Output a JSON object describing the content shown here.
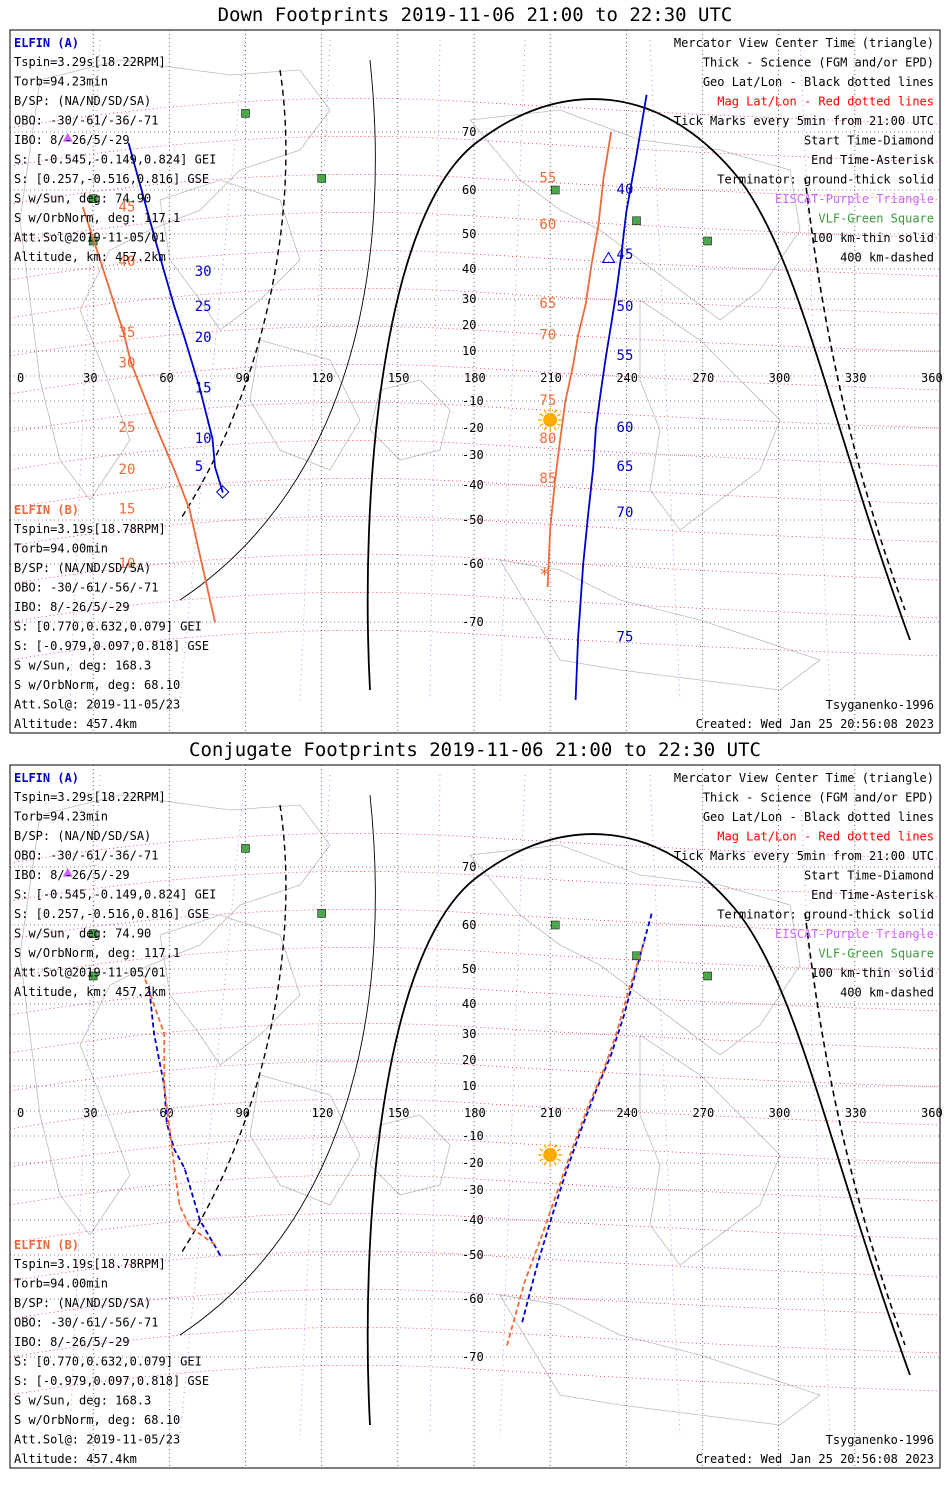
{
  "panels": [
    {
      "id": "down",
      "title": "Down Footprints 2019-11-06 21:00 to 22:30 UTC",
      "left_info": {
        "a_label": "ELFIN (A)",
        "a_lines": [
          "Tspin=3.29s[18.22RPM]",
          "Torb=94.23min",
          "B/SP: (NA/ND/SD/SA)",
          "OBO: -30/-61/-36/-71",
          "IBO: 8/-26/5/-29",
          "S: [-0.545,-0.149,0.824] GEI",
          "S: [0.257,-0.516,0.816] GSE",
          "S w/Sun, deg: 74.90",
          "S w/OrbNorm, deg: 117.1",
          "Att.Sol@2019-11-05/01",
          "Altitude, km: 457.2km"
        ],
        "b_label": "ELFIN (B)",
        "b_lines": [
          "Tspin=3.19s[18.78RPM]",
          "Torb=94.00min",
          "B/SP: (NA/ND/SD/SA)",
          "OBO: -30/-61/-56/-71",
          "IBO: 8/-26/5/-29",
          "S: [0.770,0.632,0.079] GEI",
          "S: [-0.979,0.097,0.818] GSE",
          "S w/Sun, deg: 168.3",
          "S w/OrbNorm, deg: 68.10",
          "Att.Sol@: 2019-11-05/23",
          "Altitude: 457.4km"
        ]
      },
      "a_track": [
        [
          81,
          -42
        ],
        [
          78,
          -34
        ],
        [
          77,
          -24
        ],
        [
          76,
          -14
        ],
        [
          72,
          -5
        ],
        [
          67,
          5
        ],
        [
          66,
          15
        ],
        [
          62,
          27
        ],
        [
          58,
          39
        ],
        [
          55,
          47
        ],
        [
          52,
          56
        ],
        [
          48,
          62
        ],
        [
          44,
          68
        ]
      ],
      "a_ticks": [
        [
          "5",
          -34
        ],
        [
          "10",
          -24
        ],
        [
          "15",
          -5
        ],
        [
          "20",
          15
        ],
        [
          "25",
          27
        ],
        [
          "30",
          39
        ]
      ],
      "b_track": [
        [
          80,
          -80
        ],
        [
          78,
          -70
        ],
        [
          73,
          -60
        ],
        [
          68,
          -47
        ],
        [
          62,
          -35
        ],
        [
          55,
          -20
        ],
        [
          49,
          -8
        ],
        [
          45,
          5
        ],
        [
          42,
          17
        ],
        [
          38,
          30
        ],
        [
          33,
          42
        ],
        [
          26,
          56
        ],
        [
          20,
          67
        ]
      ],
      "b_ticks": [
        [
          "10",
          -60
        ],
        [
          "15",
          -47
        ],
        [
          "20",
          -35
        ],
        [
          "25",
          -20
        ],
        [
          "30",
          5
        ],
        [
          "35",
          17
        ],
        [
          "40",
          42
        ],
        [
          "45",
          56
        ]
      ],
      "a2_track": [
        [
          220,
          -80
        ],
        [
          221,
          -72
        ],
        [
          223,
          -60
        ],
        [
          225,
          -48
        ],
        [
          227,
          -34
        ],
        [
          228,
          -20
        ],
        [
          230,
          -6
        ],
        [
          232,
          8
        ],
        [
          234,
          20
        ],
        [
          236,
          32
        ],
        [
          238,
          44
        ],
        [
          240,
          55
        ],
        [
          244,
          66
        ],
        [
          248,
          76
        ]
      ],
      "a2_ticks": [
        [
          "50",
          27
        ],
        [
          "55",
          8
        ],
        [
          "60",
          -20
        ],
        [
          "65",
          -34
        ],
        [
          "70",
          -48
        ],
        [
          "75",
          -72
        ],
        [
          "45",
          44
        ],
        [
          "40",
          60
        ]
      ],
      "b2_track": [
        [
          209,
          -64
        ],
        [
          210,
          -52
        ],
        [
          212,
          -38
        ],
        [
          214,
          -24
        ],
        [
          216,
          -10
        ],
        [
          219,
          4
        ],
        [
          221,
          16
        ],
        [
          224,
          28
        ],
        [
          226,
          40
        ],
        [
          229,
          52
        ],
        [
          231,
          62
        ],
        [
          234,
          70
        ]
      ],
      "b2_ticks": [
        [
          "85",
          -38
        ],
        [
          "80",
          -24
        ],
        [
          "75",
          -10
        ],
        [
          "70",
          16
        ],
        [
          "65",
          28
        ],
        [
          "60",
          52
        ],
        [
          "55",
          62
        ]
      ],
      "terminator_solid": "down",
      "footer_left": "",
      "footer_right": "Tsyganenko-1996",
      "created": "Created: Wed Jan 25 20:56:08 2023"
    },
    {
      "id": "conj",
      "title": "Conjugate Footprints 2019-11-06 21:00 to 22:30 UTC",
      "left_info": {
        "a_label": "ELFIN (A)",
        "a_lines": [
          "Tspin=3.29s[18.22RPM]",
          "Torb=94.23min",
          "B/SP: (NA/ND/SD/SA)",
          "OBO: -30/-61/-36/-71",
          "IBO: 8/-26/5/-29",
          "S: [-0.545,-0.149,0.824] GEI",
          "S: [0.257,-0.516,0.816] GSE",
          "S w/Sun, deg: 74.90",
          "S w/OrbNorm, deg: 117.1",
          "Att.Sol@2019-11-05/01",
          "Altitude, km: 457.2km"
        ],
        "b_label": "ELFIN (B)",
        "b_lines": [
          "Tspin=3.19s[18.78RPM]",
          "Torb=94.00min",
          "B/SP: (NA/ND/SD/SA)",
          "OBO: -30/-61/-56/-71",
          "IBO: 8/-26/5/-29",
          "S: [0.770,0.632,0.079] GEI",
          "S: [-0.979,0.097,0.818] GSE",
          "S w/Sun, deg: 168.3",
          "S w/OrbNorm, deg: 68.10",
          "Att.Sol@: 2019-11-05/23",
          "Altitude: 457.4km"
        ]
      },
      "footer_right": "Tsyganenko-1996",
      "created": "Created: Wed Jan 25 20:56:08 2023"
    }
  ],
  "legend": [
    {
      "text": "Mercator View Center Time (triangle)",
      "color": "#000000"
    },
    {
      "text": "Thick - Science (FGM and/or EPD)",
      "color": "#000000"
    },
    {
      "text": "Geo Lat/Lon - Black dotted lines",
      "color": "#000000"
    },
    {
      "text": "Mag Lat/Lon - Red dotted lines",
      "color": "#ff0000"
    },
    {
      "text": "Tick Marks every 5min from 21:00 UTC",
      "color": "#000000"
    },
    {
      "text": "Start Time-Diamond",
      "color": "#000000"
    },
    {
      "text": "End Time-Asterisk",
      "color": "#000000"
    },
    {
      "text": "Terminator: ground-thick solid",
      "color": "#000000"
    },
    {
      "text": "EISCAT-Purple Triangle",
      "color": "#cc66ff"
    },
    {
      "text": "VLF-Green Square",
      "color": "#3a9a3a"
    },
    {
      "text": "100 km-thin solid",
      "color": "#000000"
    },
    {
      "text": "400 km-dashed",
      "color": "#000000"
    }
  ],
  "axis": {
    "lon_ticks": [
      "0",
      "30",
      "60",
      "90",
      "120",
      "150",
      "180",
      "210",
      "240",
      "270",
      "300",
      "330",
      "360"
    ],
    "lat_ticks": [
      "70",
      "60",
      "50",
      "40",
      "30",
      "20",
      "10",
      "-10",
      "-20",
      "-30",
      "-40",
      "-50",
      "-60",
      "-70"
    ]
  },
  "colors": {
    "elfin_a": "#0000cc",
    "elfin_b": "#ee6a3a",
    "mag": "#ff0000",
    "eiscat": "#cc66ff",
    "vlf": "#3a9a3a",
    "sun": "#ffaa00"
  },
  "chart_data": [
    {
      "type": "scatter",
      "title": "Down Footprints 2019-11-06 21:00 to 22:30 UTC",
      "xlabel": "",
      "ylabel": "",
      "xlim": [
        0,
        360
      ],
      "ylim": [
        -80,
        80
      ],
      "x_ticks": [
        0,
        30,
        60,
        90,
        120,
        150,
        180,
        210,
        240,
        270,
        300,
        330,
        360
      ],
      "y_ticks": [
        70,
        60,
        50,
        40,
        30,
        20,
        10,
        -10,
        -20,
        -30,
        -40,
        -50,
        -60,
        -70
      ],
      "series": [
        {
          "name": "ELFIN (A)",
          "points": [
            [
              81,
              -42
            ],
            [
              78,
              -34
            ],
            [
              77,
              -24
            ],
            [
              72,
              -5
            ],
            [
              66,
              15
            ],
            [
              62,
              27
            ],
            [
              58,
              39
            ],
            [
              55,
              47
            ],
            [
              44,
              68
            ]
          ]
        },
        {
          "name": "ELFIN (B)",
          "points": [
            [
              78,
              -70
            ],
            [
              68,
              -47
            ],
            [
              62,
              -35
            ],
            [
              55,
              -20
            ],
            [
              45,
              5
            ],
            [
              42,
              17
            ],
            [
              33,
              42
            ],
            [
              26,
              56
            ]
          ]
        }
      ]
    },
    {
      "type": "scatter",
      "title": "Conjugate Footprints 2019-11-06 21:00 to 22:30 UTC",
      "xlabel": "",
      "ylabel": "",
      "xlim": [
        0,
        360
      ],
      "ylim": [
        -80,
        80
      ],
      "x_ticks": [
        0,
        30,
        60,
        90,
        120,
        150,
        180,
        210,
        240,
        270,
        300,
        330,
        360
      ],
      "y_ticks": [
        70,
        60,
        50,
        40,
        30,
        20,
        10,
        -10,
        -20,
        -30,
        -40,
        -50,
        -60,
        -70
      ],
      "series": [
        {
          "name": "ELFIN (A)",
          "points": [
            [
              80,
              -50
            ],
            [
              72,
              -40
            ],
            [
              66,
              -22
            ],
            [
              62,
              -15
            ],
            [
              59,
              -5
            ],
            [
              58,
              10
            ],
            [
              54,
              30
            ],
            [
              52,
              45
            ]
          ]
        },
        {
          "name": "ELFIN (B)",
          "points": [
            [
              78,
              -47
            ],
            [
              68,
              -42
            ],
            [
              64,
              -35
            ],
            [
              62,
              -22
            ],
            [
              58,
              10
            ],
            [
              58,
              30
            ],
            [
              50,
              48
            ]
          ]
        }
      ]
    }
  ]
}
